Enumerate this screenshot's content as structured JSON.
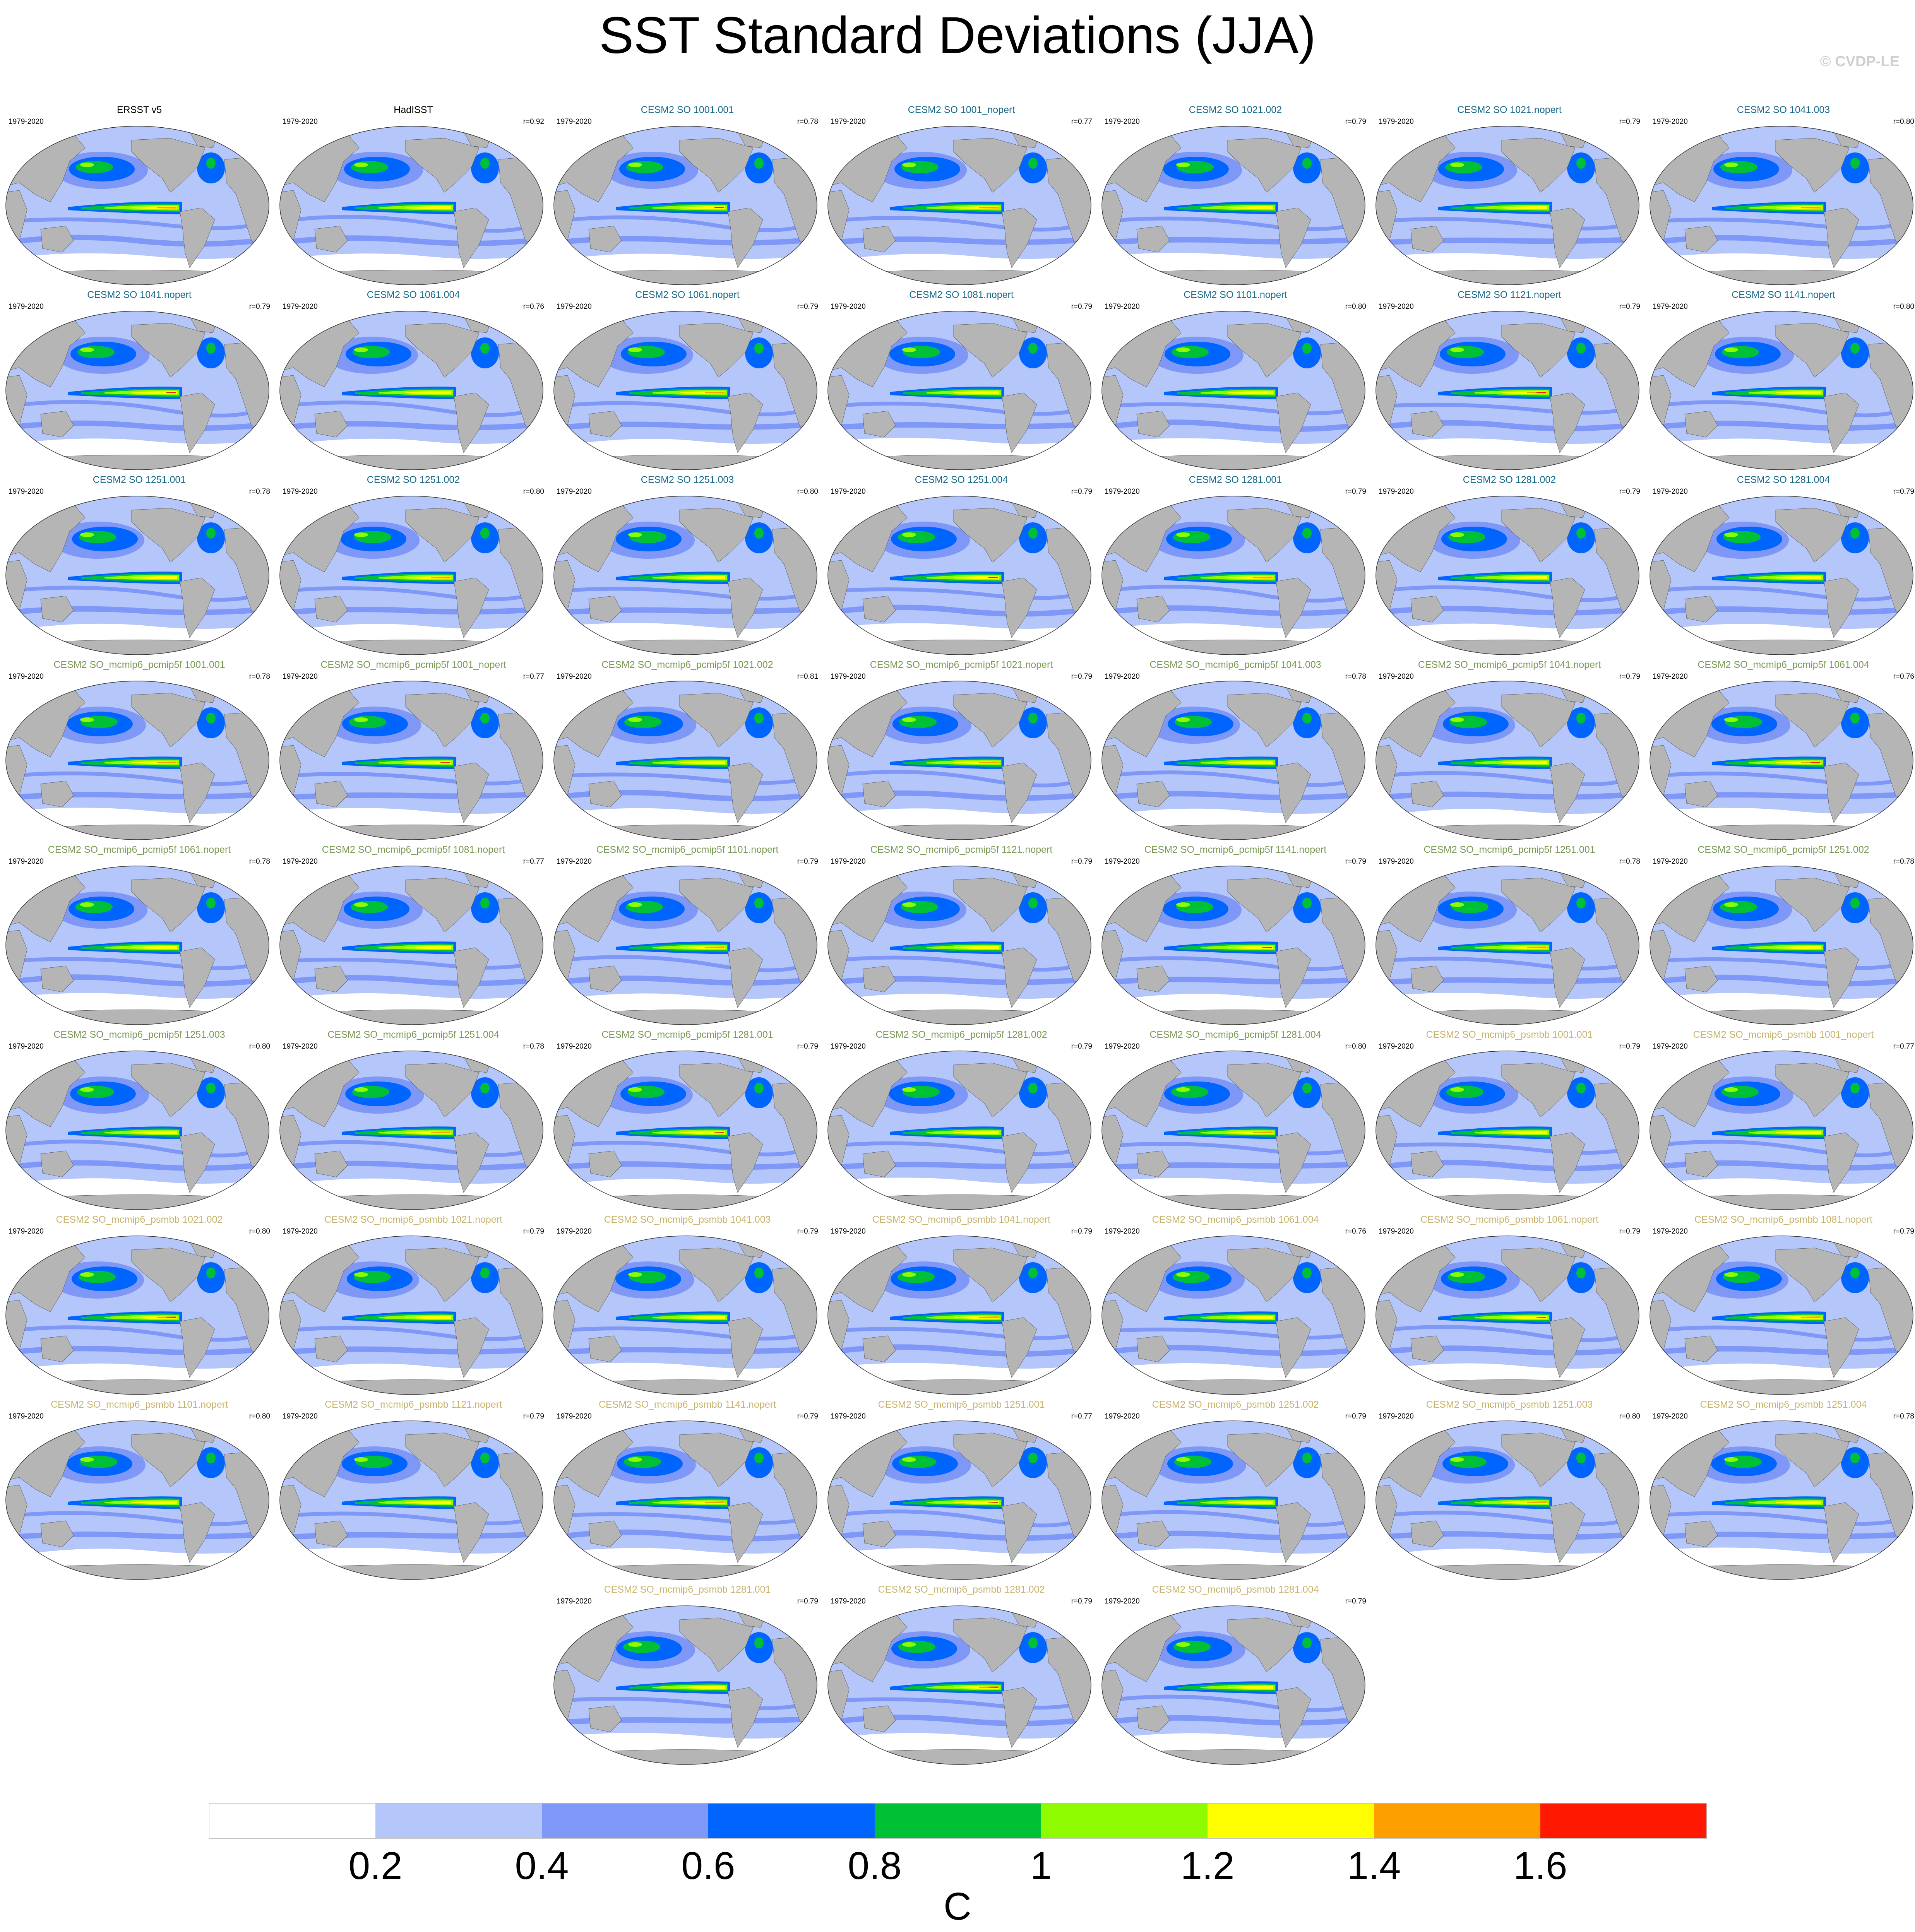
{
  "title": "SST Standard Deviations (JJA)",
  "watermark": "© CVDP-LE",
  "period": "1979-2020",
  "colors": {
    "land": "#b5b5b5",
    "title_obs": "#000000",
    "title_so": "#1a6b8a",
    "title_pcmip5f": "#7a9a55",
    "title_psmbb": "#c8b36a"
  },
  "colorbar": {
    "unit": "C",
    "ticks": [
      "0.2",
      "0.4",
      "0.6",
      "0.8",
      "1",
      "1.2",
      "1.4",
      "1.6"
    ],
    "bins": [
      "#ffffff",
      "#b4c6fa",
      "#7f98f8",
      "#0065fe",
      "#00c036",
      "#8ffb00",
      "#fefe00",
      "#fe9f00",
      "#fe1900",
      "#fe1900"
    ]
  },
  "panels": [
    {
      "name": "ERSST v5",
      "r": "",
      "group": "obs"
    },
    {
      "name": "HadISST",
      "r": "r=0.92",
      "group": "obs"
    },
    {
      "name": "CESM2 SO 1001.001",
      "r": "r=0.78",
      "group": "so"
    },
    {
      "name": "CESM2 SO 1001_nopert",
      "r": "r=0.77",
      "group": "so"
    },
    {
      "name": "CESM2 SO 1021.002",
      "r": "r=0.79",
      "group": "so"
    },
    {
      "name": "CESM2 SO 1021.nopert",
      "r": "r=0.79",
      "group": "so"
    },
    {
      "name": "CESM2 SO 1041.003",
      "r": "r=0.80",
      "group": "so"
    },
    {
      "name": "CESM2 SO 1041.nopert",
      "r": "r=0.79",
      "group": "so"
    },
    {
      "name": "CESM2 SO 1061.004",
      "r": "r=0.76",
      "group": "so"
    },
    {
      "name": "CESM2 SO 1061.nopert",
      "r": "r=0.79",
      "group": "so"
    },
    {
      "name": "CESM2 SO 1081.nopert",
      "r": "r=0.79",
      "group": "so"
    },
    {
      "name": "CESM2 SO 1101.nopert",
      "r": "r=0.80",
      "group": "so"
    },
    {
      "name": "CESM2 SO 1121.nopert",
      "r": "r=0.79",
      "group": "so"
    },
    {
      "name": "CESM2 SO 1141.nopert",
      "r": "r=0.80",
      "group": "so"
    },
    {
      "name": "CESM2 SO 1251.001",
      "r": "r=0.78",
      "group": "so"
    },
    {
      "name": "CESM2 SO 1251.002",
      "r": "r=0.80",
      "group": "so"
    },
    {
      "name": "CESM2 SO 1251.003",
      "r": "r=0.80",
      "group": "so"
    },
    {
      "name": "CESM2 SO 1251.004",
      "r": "r=0.79",
      "group": "so"
    },
    {
      "name": "CESM2 SO 1281.001",
      "r": "r=0.79",
      "group": "so"
    },
    {
      "name": "CESM2 SO 1281.002",
      "r": "r=0.79",
      "group": "so"
    },
    {
      "name": "CESM2 SO 1281.004",
      "r": "r=0.79",
      "group": "so"
    },
    {
      "name": "CESM2 SO_mcmip6_pcmip5f 1001.001",
      "r": "r=0.78",
      "group": "pcmip5f"
    },
    {
      "name": "CESM2 SO_mcmip6_pcmip5f 1001_nopert",
      "r": "r=0.77",
      "group": "pcmip5f"
    },
    {
      "name": "CESM2 SO_mcmip6_pcmip5f 1021.002",
      "r": "r=0.81",
      "group": "pcmip5f"
    },
    {
      "name": "CESM2 SO_mcmip6_pcmip5f 1021.nopert",
      "r": "r=0.79",
      "group": "pcmip5f"
    },
    {
      "name": "CESM2 SO_mcmip6_pcmip5f 1041.003",
      "r": "r=0.78",
      "group": "pcmip5f"
    },
    {
      "name": "CESM2 SO_mcmip6_pcmip5f 1041.nopert",
      "r": "r=0.79",
      "group": "pcmip5f"
    },
    {
      "name": "CESM2 SO_mcmip6_pcmip5f 1061.004",
      "r": "r=0.76",
      "group": "pcmip5f"
    },
    {
      "name": "CESM2 SO_mcmip6_pcmip5f 1061.nopert",
      "r": "r=0.78",
      "group": "pcmip5f"
    },
    {
      "name": "CESM2 SO_mcmip6_pcmip5f 1081.nopert",
      "r": "r=0.77",
      "group": "pcmip5f"
    },
    {
      "name": "CESM2 SO_mcmip6_pcmip5f 1101.nopert",
      "r": "r=0.79",
      "group": "pcmip5f"
    },
    {
      "name": "CESM2 SO_mcmip6_pcmip5f 1121.nopert",
      "r": "r=0.79",
      "group": "pcmip5f"
    },
    {
      "name": "CESM2 SO_mcmip6_pcmip5f 1141.nopert",
      "r": "r=0.79",
      "group": "pcmip5f"
    },
    {
      "name": "CESM2 SO_mcmip6_pcmip5f 1251.001",
      "r": "r=0.78",
      "group": "pcmip5f"
    },
    {
      "name": "CESM2 SO_mcmip6_pcmip5f 1251.002",
      "r": "r=0.78",
      "group": "pcmip5f"
    },
    {
      "name": "CESM2 SO_mcmip6_pcmip5f 1251.003",
      "r": "r=0.80",
      "group": "pcmip5f"
    },
    {
      "name": "CESM2 SO_mcmip6_pcmip5f 1251.004",
      "r": "r=0.78",
      "group": "pcmip5f"
    },
    {
      "name": "CESM2 SO_mcmip6_pcmip5f 1281.001",
      "r": "r=0.79",
      "group": "pcmip5f"
    },
    {
      "name": "CESM2 SO_mcmip6_pcmip5f 1281.002",
      "r": "r=0.79",
      "group": "pcmip5f"
    },
    {
      "name": "CESM2 SO_mcmip6_pcmip5f 1281.004",
      "r": "r=0.80",
      "group": "pcmip5f"
    },
    {
      "name": "CESM2 SO_mcmip6_psmbb 1001.001",
      "r": "r=0.79",
      "group": "psmbb"
    },
    {
      "name": "CESM2 SO_mcmip6_psmbb 1001_nopert",
      "r": "r=0.77",
      "group": "psmbb"
    },
    {
      "name": "CESM2 SO_mcmip6_psmbb 1021.002",
      "r": "r=0.80",
      "group": "psmbb"
    },
    {
      "name": "CESM2 SO_mcmip6_psmbb 1021.nopert",
      "r": "r=0.79",
      "group": "psmbb"
    },
    {
      "name": "CESM2 SO_mcmip6_psmbb 1041.003",
      "r": "r=0.79",
      "group": "psmbb"
    },
    {
      "name": "CESM2 SO_mcmip6_psmbb 1041.nopert",
      "r": "r=0.79",
      "group": "psmbb"
    },
    {
      "name": "CESM2 SO_mcmip6_psmbb 1061.004",
      "r": "r=0.76",
      "group": "psmbb"
    },
    {
      "name": "CESM2 SO_mcmip6_psmbb 1061.nopert",
      "r": "r=0.79",
      "group": "psmbb"
    },
    {
      "name": "CESM2 SO_mcmip6_psmbb 1081.nopert",
      "r": "r=0.79",
      "group": "psmbb"
    },
    {
      "name": "CESM2 SO_mcmip6_psmbb 1101.nopert",
      "r": "r=0.80",
      "group": "psmbb"
    },
    {
      "name": "CESM2 SO_mcmip6_psmbb 1121.nopert",
      "r": "r=0.79",
      "group": "psmbb"
    },
    {
      "name": "CESM2 SO_mcmip6_psmbb 1141.nopert",
      "r": "r=0.79",
      "group": "psmbb"
    },
    {
      "name": "CESM2 SO_mcmip6_psmbb 1251.001",
      "r": "r=0.77",
      "group": "psmbb"
    },
    {
      "name": "CESM2 SO_mcmip6_psmbb 1251.002",
      "r": "r=0.79",
      "group": "psmbb"
    },
    {
      "name": "CESM2 SO_mcmip6_psmbb 1251.003",
      "r": "r=0.80",
      "group": "psmbb"
    },
    {
      "name": "CESM2 SO_mcmip6_psmbb 1251.004",
      "r": "r=0.78",
      "group": "psmbb"
    },
    {
      "name": "CESM2 SO_mcmip6_psmbb 1281.001",
      "r": "r=0.79",
      "group": "psmbb"
    },
    {
      "name": "CESM2 SO_mcmip6_psmbb 1281.002",
      "r": "r=0.79",
      "group": "psmbb"
    },
    {
      "name": "CESM2 SO_mcmip6_psmbb 1281.004",
      "r": "r=0.79",
      "group": "psmbb"
    }
  ]
}
